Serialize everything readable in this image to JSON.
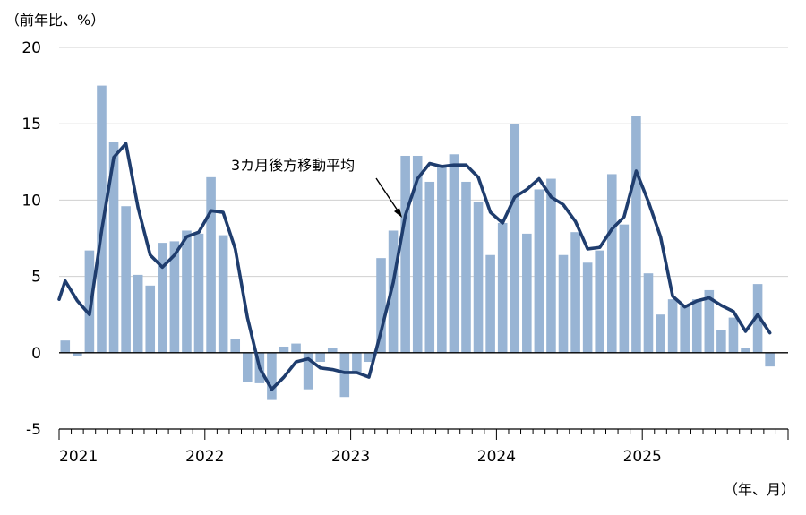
{
  "chart_data": {
    "type": "bar",
    "y_unit_label": "（前年比、%）",
    "x_unit_label": "（年、月）",
    "ylim": [
      -5,
      20
    ],
    "yticks": [
      -5,
      0,
      5,
      10,
      15,
      20
    ],
    "x_ticks": [
      "2021",
      "2022",
      "2023",
      "2024",
      "2025"
    ],
    "grid": true,
    "annotation": "3カ月後方移動平均",
    "colors": {
      "bar": "#98b4d4",
      "line": "#1f3d6e",
      "grid": "#d0d0d0"
    },
    "categories": [
      "2021-01",
      "2021-02",
      "2021-03",
      "2021-04",
      "2021-05",
      "2021-06",
      "2021-07",
      "2021-08",
      "2021-09",
      "2021-10",
      "2021-11",
      "2021-12",
      "2022-01",
      "2022-02",
      "2022-03",
      "2022-04",
      "2022-05",
      "2022-06",
      "2022-07",
      "2022-08",
      "2022-09",
      "2022-10",
      "2022-11",
      "2022-12",
      "2023-01",
      "2023-02",
      "2023-03",
      "2023-04",
      "2023-05",
      "2023-06",
      "2023-07",
      "2023-08",
      "2023-09",
      "2023-10",
      "2023-11",
      "2023-12",
      "2024-01",
      "2024-02",
      "2024-03",
      "2024-04",
      "2024-05",
      "2024-06",
      "2024-07",
      "2024-08",
      "2024-09",
      "2024-10",
      "2024-11",
      "2024-12",
      "2025-01",
      "2025-02",
      "2025-03",
      "2025-04",
      "2025-05",
      "2025-06",
      "2025-07",
      "2025-08",
      "2025-09",
      "2025-10",
      "2025-11"
    ],
    "series": [
      {
        "type": "bar",
        "values": [
          0.8,
          -0.2,
          6.7,
          17.5,
          13.8,
          9.6,
          5.1,
          4.4,
          7.2,
          7.3,
          8.0,
          7.8,
          11.5,
          7.7,
          0.9,
          -1.9,
          -2.0,
          -3.1,
          0.4,
          0.6,
          -2.4,
          -0.6,
          0.3,
          -2.9,
          -1.3,
          -0.6,
          6.2,
          8.0,
          12.9,
          12.9,
          11.2,
          12.2,
          13.0,
          11.2,
          9.9,
          6.4,
          8.5,
          15.0,
          7.8,
          10.7,
          11.4,
          6.4,
          7.9,
          5.9,
          6.7,
          11.7,
          8.4,
          15.5,
          5.2,
          2.5,
          3.5,
          3.1,
          3.5,
          4.1,
          1.5,
          2.3,
          0.3,
          4.5,
          -0.9
        ]
      },
      {
        "name": "3カ月後方移動平均",
        "type": "line",
        "values": [
          4.7,
          3.4,
          2.5,
          8.0,
          12.8,
          13.7,
          9.5,
          6.4,
          5.6,
          6.4,
          7.6,
          7.9,
          9.3,
          9.2,
          6.8,
          2.3,
          -1.0,
          -2.4,
          -1.6,
          -0.6,
          -0.4,
          -1.0,
          -1.1,
          -1.3,
          -1.3,
          -1.6,
          1.4,
          4.6,
          9.0,
          11.4,
          12.4,
          12.2,
          12.3,
          12.3,
          11.5,
          9.2,
          8.5,
          10.2,
          10.7,
          11.4,
          10.2,
          9.7,
          8.6,
          6.8,
          6.9,
          8.1,
          8.9,
          11.9,
          9.9,
          7.6,
          3.7,
          3.0,
          3.4,
          3.6,
          3.1,
          2.7,
          1.4,
          2.5,
          1.3
        ]
      }
    ]
  }
}
